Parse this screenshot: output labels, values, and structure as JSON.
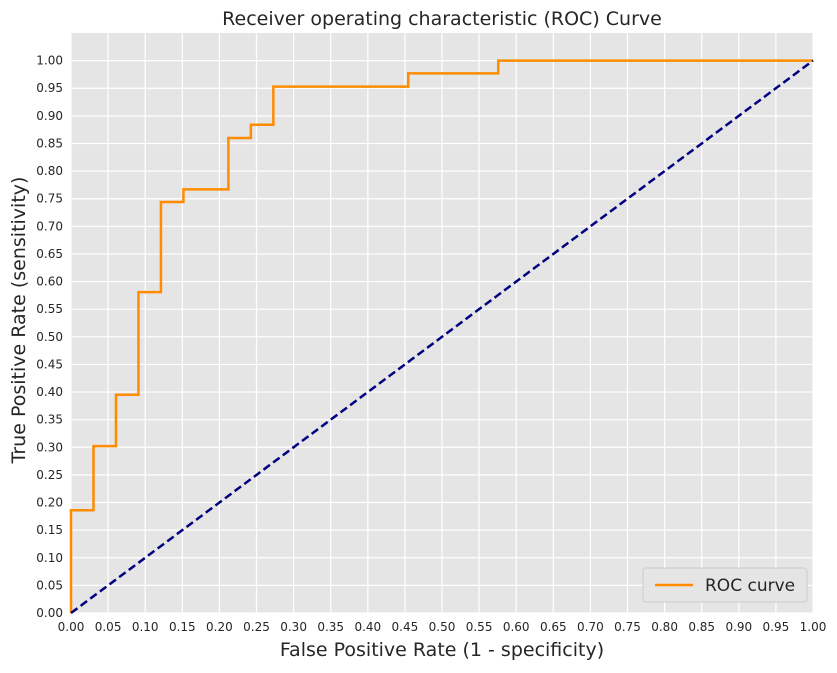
{
  "chart_data": {
    "type": "line",
    "title": "Receiver operating characteristic (ROC) Curve",
    "xlabel": "False Positive Rate (1 - specificity)",
    "ylabel": "True Positive Rate (sensitivity)",
    "xlim": [
      0,
      1
    ],
    "ylim": [
      0,
      1.05
    ],
    "xticks": [
      "0.00",
      "0.05",
      "0.10",
      "0.15",
      "0.20",
      "0.25",
      "0.30",
      "0.35",
      "0.40",
      "0.45",
      "0.50",
      "0.55",
      "0.60",
      "0.65",
      "0.70",
      "0.75",
      "0.80",
      "0.85",
      "0.90",
      "0.95",
      "1.00"
    ],
    "yticks": [
      "0.00",
      "0.05",
      "0.10",
      "0.15",
      "0.20",
      "0.25",
      "0.30",
      "0.35",
      "0.40",
      "0.45",
      "0.50",
      "0.55",
      "0.60",
      "0.65",
      "0.70",
      "0.75",
      "0.80",
      "0.85",
      "0.90",
      "0.95",
      "1.00"
    ],
    "grid": true,
    "legend_position": "lower-right",
    "series": [
      {
        "name": "ROC curve",
        "color": "#ff8c00",
        "style": "solid",
        "x": [
          0.0,
          0.0,
          0.0303,
          0.0303,
          0.0606,
          0.0606,
          0.0909,
          0.0909,
          0.1212,
          0.1212,
          0.1515,
          0.1515,
          0.2121,
          0.2121,
          0.2424,
          0.2424,
          0.2727,
          0.2727,
          0.4545,
          0.4545,
          0.5758,
          0.5758,
          1.0
        ],
        "y": [
          0.0,
          0.186,
          0.186,
          0.302,
          0.302,
          0.395,
          0.395,
          0.581,
          0.581,
          0.744,
          0.744,
          0.767,
          0.767,
          0.86,
          0.86,
          0.884,
          0.884,
          0.953,
          0.953,
          0.977,
          0.977,
          1.0,
          1.0
        ]
      },
      {
        "color": "#000080",
        "style": "dashed",
        "x": [
          0,
          1
        ],
        "y": [
          0,
          1
        ]
      }
    ]
  }
}
